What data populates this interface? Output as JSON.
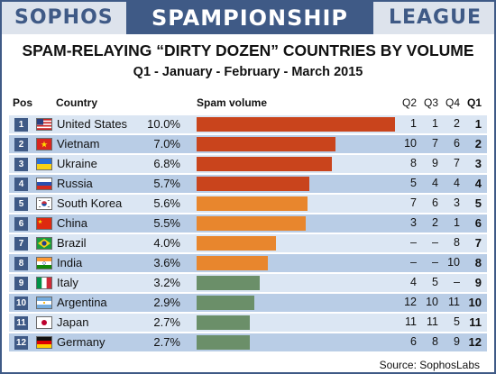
{
  "header": {
    "left": "SOPHOS",
    "center": "SPAMPIONSHIP",
    "right": "LEAGUE"
  },
  "title": "SPAM-RELAYING “DIRTY DOZEN” COUNTRIES BY VOLUME",
  "subtitle": "Q1 - January - February - March 2015",
  "columns": {
    "pos": "Pos",
    "country": "Country",
    "volume": "Spam volume",
    "q2": "Q2",
    "q3": "Q3",
    "q4": "Q4",
    "q1": "Q1"
  },
  "source": "Source: SophosLabs",
  "colors": {
    "red": "#c9441c",
    "orange": "#e8862d",
    "green": "#6b8f69",
    "navy": "#3f5a86"
  },
  "chart_data": {
    "type": "table",
    "title": "SPAM-RELAYING “DIRTY DOZEN” COUNTRIES BY VOLUME",
    "subtitle": "Q1 - January - February - March 2015",
    "rows": [
      {
        "rank": "1",
        "flag": "us-flag-icon",
        "country": "United States",
        "pct_label": "10.0%",
        "value": 10.0,
        "color": "#c9441c",
        "q2": "1",
        "q3": "1",
        "q4": "2",
        "q1": "1"
      },
      {
        "rank": "2",
        "flag": "vietnam-flag-icon",
        "country": "Vietnam",
        "pct_label": "7.0%",
        "value": 7.0,
        "color": "#c9441c",
        "q2": "10",
        "q3": "7",
        "q4": "6",
        "q1": "2"
      },
      {
        "rank": "3",
        "flag": "ukraine-flag-icon",
        "country": "Ukraine",
        "pct_label": "6.8%",
        "value": 6.8,
        "color": "#c9441c",
        "q2": "8",
        "q3": "9",
        "q4": "7",
        "q1": "3"
      },
      {
        "rank": "4",
        "flag": "russia-flag-icon",
        "country": "Russia",
        "pct_label": "5.7%",
        "value": 5.7,
        "color": "#c9441c",
        "q2": "5",
        "q3": "4",
        "q4": "4",
        "q1": "4"
      },
      {
        "rank": "5",
        "flag": "south-korea-flag-icon",
        "country": "South Korea",
        "pct_label": "5.6%",
        "value": 5.6,
        "color": "#e8862d",
        "q2": "7",
        "q3": "6",
        "q4": "3",
        "q1": "5"
      },
      {
        "rank": "6",
        "flag": "china-flag-icon",
        "country": "China",
        "pct_label": "5.5%",
        "value": 5.5,
        "color": "#e8862d",
        "q2": "3",
        "q3": "2",
        "q4": "1",
        "q1": "6"
      },
      {
        "rank": "7",
        "flag": "brazil-flag-icon",
        "country": "Brazil",
        "pct_label": "4.0%",
        "value": 4.0,
        "color": "#e8862d",
        "q2": "–",
        "q3": "–",
        "q4": "8",
        "q1": "7"
      },
      {
        "rank": "8",
        "flag": "india-flag-icon",
        "country": "India",
        "pct_label": "3.6%",
        "value": 3.6,
        "color": "#e8862d",
        "q2": "–",
        "q3": "–",
        "q4": "10",
        "q1": "8"
      },
      {
        "rank": "9",
        "flag": "italy-flag-icon",
        "country": "Italy",
        "pct_label": "3.2%",
        "value": 3.2,
        "color": "#6b8f69",
        "q2": "4",
        "q3": "5",
        "q4": "–",
        "q1": "9"
      },
      {
        "rank": "10",
        "flag": "argentina-flag-icon",
        "country": "Argentina",
        "pct_label": "2.9%",
        "value": 2.9,
        "color": "#6b8f69",
        "q2": "12",
        "q3": "10",
        "q4": "11",
        "q1": "10"
      },
      {
        "rank": "11",
        "flag": "japan-flag-icon",
        "country": "Japan",
        "pct_label": "2.7%",
        "value": 2.7,
        "color": "#6b8f69",
        "q2": "11",
        "q3": "11",
        "q4": "5",
        "q1": "11"
      },
      {
        "rank": "12",
        "flag": "germany-flag-icon",
        "country": "Germany",
        "pct_label": "2.7%",
        "value": 2.7,
        "color": "#6b8f69",
        "q2": "6",
        "q3": "8",
        "q4": "9",
        "q1": "12"
      }
    ],
    "value_range": [
      0,
      10
    ]
  }
}
